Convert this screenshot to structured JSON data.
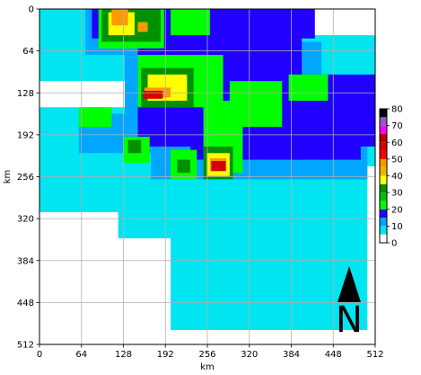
{
  "chart_data": {
    "type": "heatmap",
    "title": "",
    "xlabel": "km",
    "ylabel": "km",
    "xlim": [
      0,
      512
    ],
    "ylim": [
      0,
      512
    ],
    "y_inverted": true,
    "grid": true,
    "x_ticks": [
      "0",
      "64",
      "128",
      "192",
      "256",
      "320",
      "384",
      "448",
      "512"
    ],
    "y_ticks": [
      "0",
      "64",
      "128",
      "192",
      "256",
      "320",
      "384",
      "448",
      "512"
    ],
    "colorbar": {
      "ticks": [
        "0",
        "10",
        "20",
        "30",
        "40",
        "50",
        "60",
        "70",
        "80"
      ],
      "levels": [
        {
          "from": 0,
          "to": 5,
          "color": "#ffffff"
        },
        {
          "from": 5,
          "to": 10,
          "color": "#00e5f0"
        },
        {
          "from": 10,
          "to": 15,
          "color": "#00a6ff"
        },
        {
          "from": 15,
          "to": 20,
          "color": "#2200ff"
        },
        {
          "from": 20,
          "to": 25,
          "color": "#00ff00"
        },
        {
          "from": 25,
          "to": 30,
          "color": "#00c400"
        },
        {
          "from": 30,
          "to": 35,
          "color": "#009100"
        },
        {
          "from": 35,
          "to": 40,
          "color": "#ffff00"
        },
        {
          "from": 40,
          "to": 45,
          "color": "#e6b800"
        },
        {
          "from": 45,
          "to": 50,
          "color": "#ff9900"
        },
        {
          "from": 50,
          "to": 55,
          "color": "#ff0000"
        },
        {
          "from": 55,
          "to": 60,
          "color": "#d40000"
        },
        {
          "from": 60,
          "to": 65,
          "color": "#bb0000"
        },
        {
          "from": 65,
          "to": 70,
          "color": "#ff00ff"
        },
        {
          "from": 70,
          "to": 75,
          "color": "#9955c9"
        },
        {
          "from": 75,
          "to": 80,
          "color": "#000000"
        }
      ]
    },
    "cells": [
      {
        "x": 0,
        "y": 0,
        "w": 512,
        "h": 512,
        "v": 0
      },
      {
        "x": 0,
        "y": 150,
        "w": 200,
        "h": 160,
        "v": 7
      },
      {
        "x": 200,
        "y": 240,
        "w": 300,
        "h": 250,
        "v": 7
      },
      {
        "x": 120,
        "y": 290,
        "w": 100,
        "h": 60,
        "v": 7
      },
      {
        "x": 0,
        "y": 0,
        "w": 130,
        "h": 110,
        "v": 7
      },
      {
        "x": 300,
        "y": 40,
        "w": 212,
        "h": 200,
        "v": 7
      },
      {
        "x": 70,
        "y": 0,
        "w": 200,
        "h": 70,
        "v": 12
      },
      {
        "x": 130,
        "y": 50,
        "w": 300,
        "h": 120,
        "v": 12
      },
      {
        "x": 170,
        "y": 130,
        "w": 330,
        "h": 130,
        "v": 12
      },
      {
        "x": 60,
        "y": 160,
        "w": 110,
        "h": 60,
        "v": 12
      },
      {
        "x": 250,
        "y": 0,
        "w": 130,
        "h": 40,
        "v": 12
      },
      {
        "x": 80,
        "y": 0,
        "w": 340,
        "h": 45,
        "v": 17
      },
      {
        "x": 150,
        "y": 30,
        "w": 250,
        "h": 130,
        "v": 17
      },
      {
        "x": 230,
        "y": 120,
        "w": 260,
        "h": 110,
        "v": 17
      },
      {
        "x": 360,
        "y": 100,
        "w": 152,
        "h": 110,
        "v": 17
      },
      {
        "x": 150,
        "y": 150,
        "w": 90,
        "h": 60,
        "v": 17
      },
      {
        "x": 90,
        "y": 0,
        "w": 100,
        "h": 60,
        "v": 22
      },
      {
        "x": 150,
        "y": 70,
        "w": 130,
        "h": 80,
        "v": 22
      },
      {
        "x": 250,
        "y": 140,
        "w": 60,
        "h": 110,
        "v": 22
      },
      {
        "x": 290,
        "y": 110,
        "w": 80,
        "h": 70,
        "v": 22
      },
      {
        "x": 380,
        "y": 100,
        "w": 60,
        "h": 40,
        "v": 22
      },
      {
        "x": 200,
        "y": 0,
        "w": 60,
        "h": 40,
        "v": 22
      },
      {
        "x": 128,
        "y": 195,
        "w": 40,
        "h": 40,
        "v": 22
      },
      {
        "x": 200,
        "y": 215,
        "w": 40,
        "h": 45,
        "v": 22
      },
      {
        "x": 60,
        "y": 150,
        "w": 50,
        "h": 30,
        "v": 22
      },
      {
        "x": 95,
        "y": 0,
        "w": 90,
        "h": 50,
        "v": 32
      },
      {
        "x": 155,
        "y": 90,
        "w": 80,
        "h": 60,
        "v": 32
      },
      {
        "x": 250,
        "y": 210,
        "w": 45,
        "h": 50,
        "v": 32
      },
      {
        "x": 135,
        "y": 200,
        "w": 20,
        "h": 20,
        "v": 32
      },
      {
        "x": 210,
        "y": 230,
        "w": 20,
        "h": 20,
        "v": 32
      },
      {
        "x": 105,
        "y": 5,
        "w": 40,
        "h": 35,
        "v": 38
      },
      {
        "x": 165,
        "y": 100,
        "w": 60,
        "h": 40,
        "v": 38
      },
      {
        "x": 255,
        "y": 220,
        "w": 35,
        "h": 35,
        "v": 38
      },
      {
        "x": 110,
        "y": 0,
        "w": 25,
        "h": 25,
        "v": 47
      },
      {
        "x": 160,
        "y": 120,
        "w": 40,
        "h": 15,
        "v": 47
      },
      {
        "x": 260,
        "y": 228,
        "w": 25,
        "h": 20,
        "v": 47
      },
      {
        "x": 150,
        "y": 20,
        "w": 15,
        "h": 15,
        "v": 47
      },
      {
        "x": 158,
        "y": 125,
        "w": 30,
        "h": 12,
        "v": 57
      },
      {
        "x": 262,
        "y": 232,
        "w": 22,
        "h": 15,
        "v": 57
      }
    ],
    "north_arrow": {
      "label": "N"
    }
  }
}
